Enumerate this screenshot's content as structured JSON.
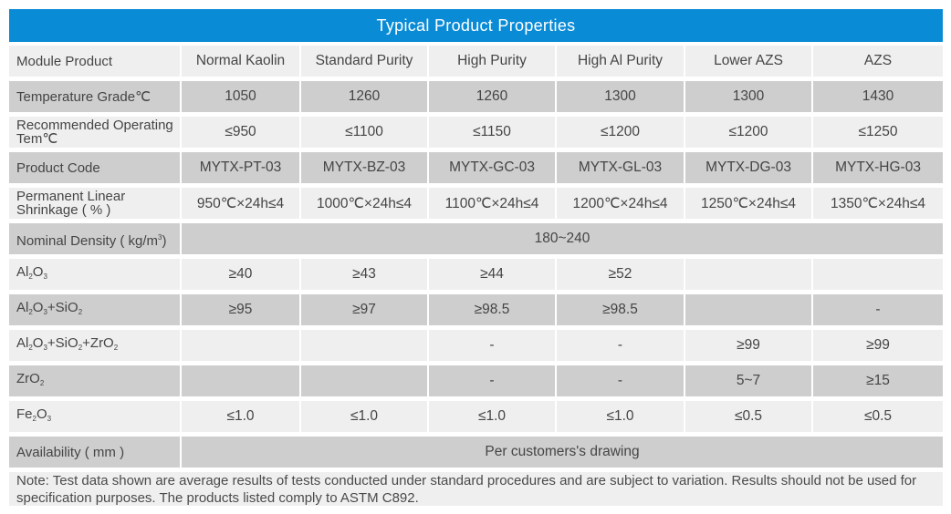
{
  "title": "Typical Product Properties",
  "rows": [
    {
      "label_parts": [
        "Module Product"
      ],
      "values": [
        "Normal Kaolin",
        "Standard Purity",
        "High Purity",
        "High Al Purity",
        "Lower AZS",
        "AZS"
      ]
    },
    {
      "label_parts": [
        "Temperature Grade℃"
      ],
      "values": [
        "1050",
        "1260",
        "1260",
        "1300",
        "1300",
        "1430"
      ]
    },
    {
      "label_parts": [
        "Recommended Operating Tem℃"
      ],
      "values": [
        "≤950",
        "≤1100",
        "≤1150",
        "≤1200",
        "≤1200",
        "≤1250"
      ]
    },
    {
      "label_parts": [
        "Product Code"
      ],
      "values": [
        "MYTX-PT-03",
        "MYTX-BZ-03",
        "MYTX-GC-03",
        "MYTX-GL-03",
        "MYTX-DG-03",
        "MYTX-HG-03"
      ]
    },
    {
      "label_parts": [
        "Permanent Linear Shrinkage ( % )"
      ],
      "values": [
        "950℃×24h≤4",
        "1000℃×24h≤4",
        "1100℃×24h≤4",
        "1200℃×24h≤4",
        "1250℃×24h≤4",
        "1350℃×24h≤4"
      ]
    },
    {
      "label_parts": [
        "Nominal Density ( kg/m",
        "3",
        ")"
      ],
      "label_style": "sup",
      "span_value": "180~240"
    },
    {
      "label_parts": [
        "Al",
        "2",
        "O",
        "3"
      ],
      "values": [
        "≥40",
        "≥43",
        "≥44",
        "≥52",
        "",
        ""
      ]
    },
    {
      "label_parts": [
        "Al",
        "2",
        "O",
        "3",
        "+SiO",
        "2"
      ],
      "values": [
        "≥95",
        "≥97",
        "≥98.5",
        "≥98.5",
        "",
        "-"
      ]
    },
    {
      "label_parts": [
        "Al",
        "2",
        "O",
        "3",
        "+SiO",
        "2",
        "+ZrO",
        "2"
      ],
      "values": [
        "",
        "",
        "-",
        "-",
        "≥99",
        "≥99"
      ]
    },
    {
      "label_parts": [
        "ZrO",
        "2"
      ],
      "values": [
        "",
        "",
        "-",
        "-",
        "5~7",
        "≥15"
      ]
    },
    {
      "label_parts": [
        "Fe",
        "2",
        "O",
        "3"
      ],
      "values": [
        "≤1.0",
        "≤1.0",
        "≤1.0",
        "≤1.0",
        "≤0.5",
        "≤0.5"
      ]
    },
    {
      "label_parts": [
        "Availability ( mm )"
      ],
      "span_value": "Per customers's drawing"
    }
  ],
  "note": "Note: Test data shown are average results of tests conducted under standard procedures and are subject to variation. Results should not be used for specification purposes. The products listed comply to ASTM C892."
}
